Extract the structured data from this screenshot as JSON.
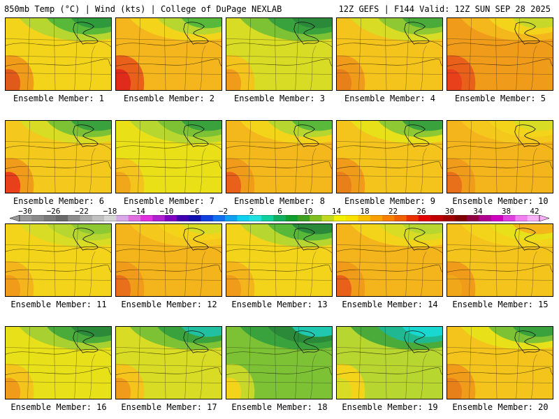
{
  "header": {
    "left": "850mb Temp (°C) | Wind (kts) | College of DuPage NEXLAB",
    "right": "12Z GEFS | F144 Valid: 12Z SUN SEP 28 2025"
  },
  "colorbar": {
    "tick_labels": [
      "-30",
      "-26",
      "-22",
      "-18",
      "-14",
      "-10",
      "-6",
      "-2",
      "2",
      "6",
      "10",
      "14",
      "18",
      "22",
      "26",
      "30",
      "34",
      "38",
      "42"
    ],
    "colors": [
      "#9a9a9a",
      "#8a8a8a",
      "#7a7a7a",
      "#6a6a6a",
      "#8c8c8c",
      "#aaaaaa",
      "#c0c0c0",
      "#d6d6d6",
      "#d8a8e8",
      "#e070e0",
      "#e030e0",
      "#b020d0",
      "#8000c0",
      "#4000b0",
      "#1010b0",
      "#1040e0",
      "#1070f0",
      "#10a0f0",
      "#10d0f0",
      "#20e0e0",
      "#10d0a0",
      "#10b060",
      "#10a030",
      "#40a020",
      "#80c020",
      "#c0d820",
      "#f0f000",
      "#f8e000",
      "#f8c000",
      "#f8a000",
      "#f88000",
      "#f06000",
      "#e83000",
      "#e00000",
      "#c00000",
      "#a00000",
      "#800000",
      "#900040",
      "#b00090",
      "#d000c0",
      "#e040e0",
      "#f080f0",
      "#f8b0f8"
    ]
  },
  "members": [
    {
      "label": "Ensemble Member: 1",
      "palette": [
        "#f4d41a",
        "#b8d630",
        "#58b83a",
        "#2f9a3c"
      ],
      "hot": [
        "#f09c1a",
        "#e05a1a"
      ]
    },
    {
      "label": "Ensemble Member: 2",
      "palette": [
        "#f4b61c",
        "#f4d41a",
        "#b8d630",
        "#58b83a"
      ],
      "hot": [
        "#e8601a",
        "#e02a1a"
      ]
    },
    {
      "label": "Ensemble Member: 3",
      "palette": [
        "#d8dc24",
        "#7cc234",
        "#3aa23c",
        "#2a8a3a"
      ],
      "hot": [
        "#f4c41c",
        "#f09c1a"
      ]
    },
    {
      "label": "Ensemble Member: 4",
      "palette": [
        "#f4c41c",
        "#d8dc24",
        "#8ec832",
        "#4aaa3a"
      ],
      "hot": [
        "#f09c1a",
        "#e8801a"
      ]
    },
    {
      "label": "Ensemble Member: 5",
      "palette": [
        "#f09c1a",
        "#f4b81c",
        "#f4d41a",
        "#c8d82a"
      ],
      "hot": [
        "#e8601a",
        "#e8401a"
      ]
    },
    {
      "label": "Ensemble Member: 6",
      "palette": [
        "#f4c81c",
        "#d8dc24",
        "#7cc234",
        "#3aa23c"
      ],
      "hot": [
        "#f09c1a",
        "#e8401a"
      ]
    },
    {
      "label": "Ensemble Member: 7",
      "palette": [
        "#eae018",
        "#b8d630",
        "#7cc234",
        "#3aa23c"
      ],
      "hot": [
        "#f4c41c",
        "#f0a81a"
      ]
    },
    {
      "label": "Ensemble Member: 8",
      "palette": [
        "#f4b81c",
        "#f4d41a",
        "#b8d630",
        "#5ab83a"
      ],
      "hot": [
        "#f09c1a",
        "#e8601a"
      ]
    },
    {
      "label": "Ensemble Member: 9",
      "palette": [
        "#f4c41c",
        "#e8e018",
        "#8ec832",
        "#3aa23c"
      ],
      "hot": [
        "#f09c1a",
        "#e8801a"
      ]
    },
    {
      "label": "Ensemble Member: 10",
      "palette": [
        "#f4b41c",
        "#f4c81c",
        "#f4d41a",
        "#d8dc24"
      ],
      "hot": [
        "#f09c1a",
        "#e8701a"
      ]
    },
    {
      "label": "Ensemble Member: 11",
      "palette": [
        "#f4d41a",
        "#d8dc24",
        "#b8d630",
        "#8ec832"
      ],
      "hot": [
        "#f4b41c",
        "#f09c1a"
      ]
    },
    {
      "label": "Ensemble Member: 12",
      "palette": [
        "#f4b41c",
        "#f4c81c",
        "#f4d41a",
        "#d8dc24"
      ],
      "hot": [
        "#f09c1a",
        "#e8701a"
      ]
    },
    {
      "label": "Ensemble Member: 13",
      "palette": [
        "#f4d41a",
        "#b8d630",
        "#58b83a",
        "#2a8a3a"
      ],
      "hot": [
        "#f4b41c",
        "#f09c1a"
      ]
    },
    {
      "label": "Ensemble Member: 14",
      "palette": [
        "#f4b41c",
        "#f4d41a",
        "#d8dc24",
        "#b8d630"
      ],
      "hot": [
        "#f09c1a",
        "#e8601a"
      ]
    },
    {
      "label": "Ensemble Member: 15",
      "palette": [
        "#f4c41c",
        "#f4d41a",
        "#e8e018",
        "#f4b41c"
      ],
      "hot": [
        "#f09c1a",
        "#f0a81a"
      ]
    },
    {
      "label": "Ensemble Member: 16",
      "palette": [
        "#e8e018",
        "#a8d030",
        "#4aaa3a",
        "#2a8a3a"
      ],
      "hot": [
        "#f4c41c",
        "#f09c1a"
      ]
    },
    {
      "label": "Ensemble Member: 17",
      "palette": [
        "#d8dc24",
        "#7cc234",
        "#3aa23c",
        "#20c0a0"
      ],
      "hot": [
        "#f4c41c",
        "#f09c1a"
      ]
    },
    {
      "label": "Ensemble Member: 18",
      "palette": [
        "#7cc234",
        "#3aa23c",
        "#2a8a3a",
        "#20c8b0"
      ],
      "hot": [
        "#c8d82a",
        "#f4d41a"
      ]
    },
    {
      "label": "Ensemble Member: 19",
      "palette": [
        "#b8d630",
        "#4aaa3a",
        "#20b890",
        "#18d8d0"
      ],
      "hot": [
        "#f4d41a",
        "#d8dc24"
      ]
    },
    {
      "label": "Ensemble Member: 20",
      "palette": [
        "#f4c41c",
        "#e8e018",
        "#7cc234",
        "#3aa23c"
      ],
      "hot": [
        "#f09c1a",
        "#e8801a"
      ]
    }
  ]
}
